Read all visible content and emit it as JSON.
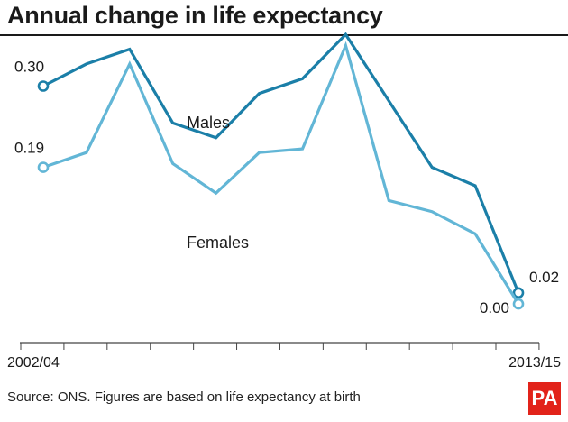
{
  "header": {
    "title": "Annual change in life expectancy"
  },
  "footer": {
    "source": "Source: ONS. Figures are based on life expectancy at birth",
    "logo_text": "PA"
  },
  "colors": {
    "males": "#1b7fa8",
    "females": "#62b6d6",
    "axis": "#444444"
  },
  "chart_data": {
    "type": "line",
    "title": "Annual change in life expectancy",
    "x_tick_labels": [
      "2002/04",
      "2013/15"
    ],
    "x_count": 12,
    "ylim": [
      -0.045,
      0.38
    ],
    "grid": false,
    "series": [
      {
        "name": "Males",
        "values": [
          0.3,
          0.33,
          0.35,
          0.25,
          0.23,
          0.29,
          0.31,
          0.37,
          0.28,
          0.19,
          0.165,
          0.02
        ],
        "start_label": "0.30",
        "end_label": "0.02"
      },
      {
        "name": "Females",
        "values": [
          0.19,
          0.21,
          0.33,
          0.195,
          0.155,
          0.21,
          0.215,
          0.355,
          0.145,
          0.13,
          0.1,
          0.005
        ],
        "start_label": "0.19",
        "end_label": "0.00"
      }
    ]
  }
}
